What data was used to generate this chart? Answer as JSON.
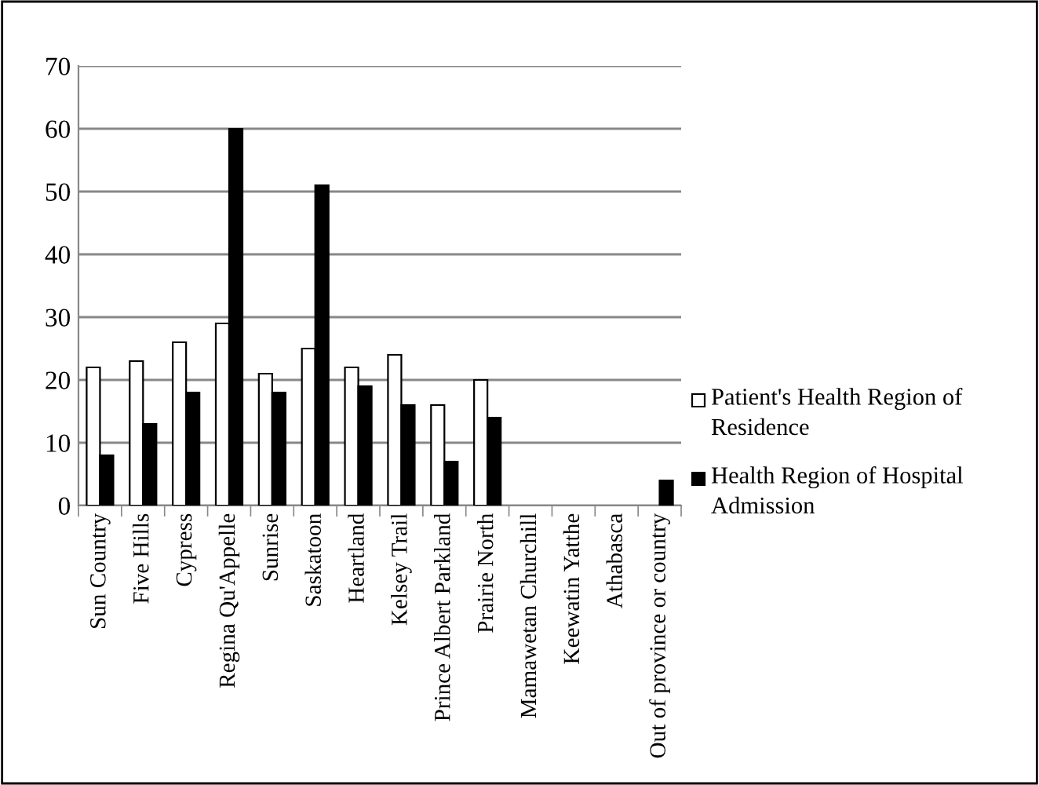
{
  "chart_data": {
    "type": "bar",
    "categories": [
      "Sun Country",
      "Five Hills",
      "Cypress",
      "Regina Qu'Appelle",
      "Sunrise",
      "Saskatoon",
      "Heartland",
      "Kelsey Trail",
      "Prince Albert Parkland",
      "Prairie North",
      "Mamawetan Churchill",
      "Keewatin Yatthe",
      "Athabasca",
      "Out of province or country"
    ],
    "series": [
      {
        "name": "Patient's Health Region of Residence",
        "color": "#ffffff",
        "values": [
          22,
          23,
          26,
          29,
          21,
          25,
          22,
          24,
          16,
          20,
          0,
          0,
          0,
          0
        ]
      },
      {
        "name": "Health Region of Hospital Admission",
        "color": "#000000",
        "values": [
          8,
          13,
          18,
          60,
          18,
          51,
          19,
          16,
          7,
          14,
          0,
          0,
          0,
          4
        ]
      }
    ],
    "ylim": [
      0,
      70
    ],
    "yticks": [
      0,
      10,
      20,
      30,
      40,
      50,
      60,
      70
    ],
    "grid": "y",
    "legend": "right"
  }
}
